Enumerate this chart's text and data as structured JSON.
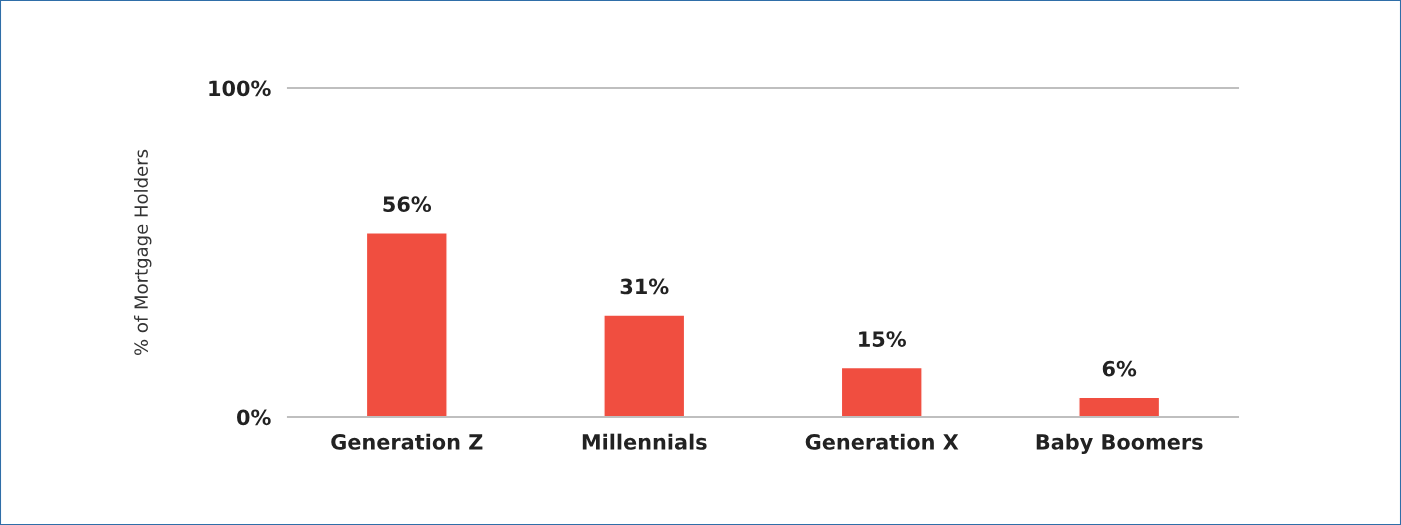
{
  "chart_data": {
    "type": "bar",
    "categories": [
      "Generation Z",
      "Millennials",
      "Generation X",
      "Baby Boomers"
    ],
    "values": [
      56,
      31,
      15,
      6
    ],
    "value_labels": [
      "56%",
      "31%",
      "15%",
      "6%"
    ],
    "color": "#f04e40",
    "ylabel": "% of Mortgage Holders",
    "ylim": [
      0,
      100
    ],
    "yticks": [
      {
        "value": 0,
        "label": "0%"
      },
      {
        "value": 100,
        "label": "100%"
      }
    ],
    "grid": false,
    "legend": false
  }
}
